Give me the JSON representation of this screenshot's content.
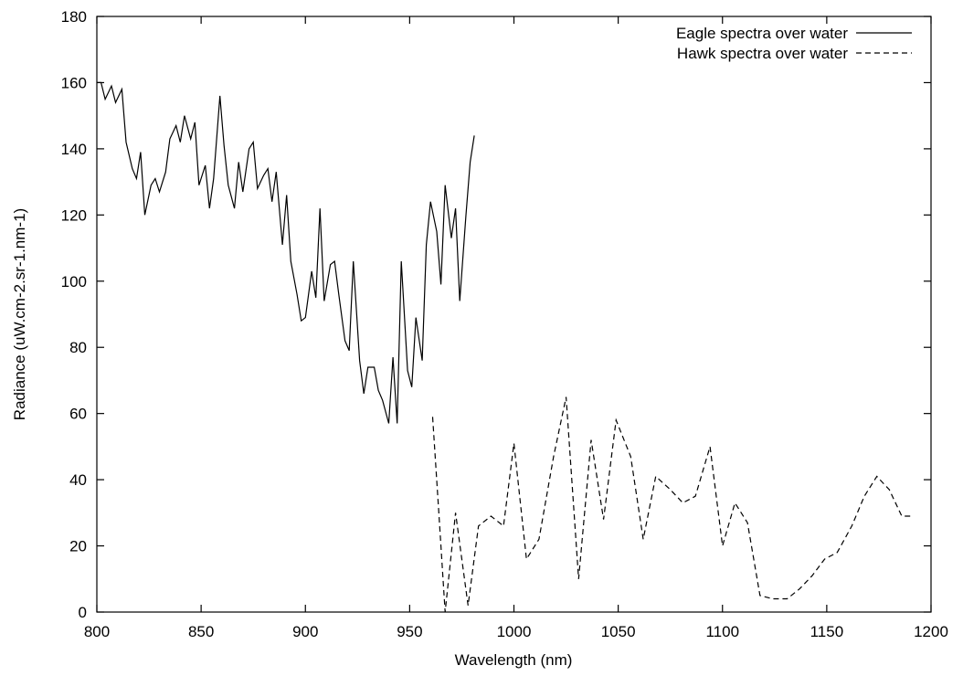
{
  "chart_data": {
    "type": "line",
    "title": "",
    "xlabel": "Wavelength (nm)",
    "ylabel": "Radiance (uW.cm-2.sr-1.nm-1)",
    "xlim": [
      800,
      1200
    ],
    "ylim": [
      0,
      180
    ],
    "x_ticks": [
      800,
      850,
      900,
      950,
      1000,
      1050,
      1100,
      1150,
      1200
    ],
    "y_ticks": [
      0,
      20,
      40,
      60,
      80,
      100,
      120,
      140,
      160,
      180
    ],
    "grid": false,
    "legend_position": "top-right",
    "series": [
      {
        "name": "Eagle spectra over water",
        "style": "solid",
        "color": "#000000",
        "points": [
          [
            800,
            160
          ],
          [
            802,
            160
          ],
          [
            804,
            155
          ],
          [
            807,
            159
          ],
          [
            809,
            154
          ],
          [
            812,
            158
          ],
          [
            814,
            142
          ],
          [
            817,
            134
          ],
          [
            819,
            131
          ],
          [
            821,
            139
          ],
          [
            823,
            120
          ],
          [
            826,
            129
          ],
          [
            828,
            131
          ],
          [
            830,
            127
          ],
          [
            833,
            133
          ],
          [
            835,
            143
          ],
          [
            838,
            147
          ],
          [
            840,
            142
          ],
          [
            842,
            150
          ],
          [
            845,
            143
          ],
          [
            847,
            148
          ],
          [
            849,
            129
          ],
          [
            852,
            135
          ],
          [
            854,
            122
          ],
          [
            856,
            131
          ],
          [
            859,
            156
          ],
          [
            861,
            141
          ],
          [
            863,
            129
          ],
          [
            866,
            122
          ],
          [
            868,
            136
          ],
          [
            870,
            127
          ],
          [
            873,
            140
          ],
          [
            875,
            142
          ],
          [
            877,
            128
          ],
          [
            880,
            132
          ],
          [
            882,
            134
          ],
          [
            884,
            124
          ],
          [
            886,
            133
          ],
          [
            889,
            111
          ],
          [
            891,
            126
          ],
          [
            893,
            106
          ],
          [
            896,
            96
          ],
          [
            898,
            88
          ],
          [
            900,
            89
          ],
          [
            903,
            103
          ],
          [
            905,
            95
          ],
          [
            907,
            122
          ],
          [
            909,
            94
          ],
          [
            912,
            105
          ],
          [
            914,
            106
          ],
          [
            916,
            96
          ],
          [
            919,
            82
          ],
          [
            921,
            79
          ],
          [
            923,
            106
          ],
          [
            926,
            76
          ],
          [
            928,
            66
          ],
          [
            930,
            74
          ],
          [
            933,
            74
          ],
          [
            935,
            67
          ],
          [
            937,
            64
          ],
          [
            940,
            57
          ],
          [
            942,
            77
          ],
          [
            944,
            57
          ],
          [
            946,
            106
          ],
          [
            949,
            73
          ],
          [
            951,
            68
          ],
          [
            953,
            89
          ],
          [
            956,
            76
          ],
          [
            958,
            111
          ],
          [
            960,
            124
          ],
          [
            963,
            115
          ],
          [
            965,
            99
          ],
          [
            967,
            129
          ],
          [
            970,
            113
          ],
          [
            972,
            122
          ],
          [
            974,
            94
          ],
          [
            977,
            120
          ],
          [
            979,
            136
          ],
          [
            981,
            144
          ]
        ]
      },
      {
        "name": "Hawk spectra over water",
        "style": "dashed",
        "color": "#000000",
        "points": [
          [
            961,
            59
          ],
          [
            964,
            30
          ],
          [
            967,
            0
          ],
          [
            972,
            30
          ],
          [
            978,
            2
          ],
          [
            983,
            26
          ],
          [
            989,
            29
          ],
          [
            995,
            26
          ],
          [
            1000,
            51
          ],
          [
            1006,
            16
          ],
          [
            1012,
            22
          ],
          [
            1019,
            47
          ],
          [
            1025,
            65
          ],
          [
            1031,
            10
          ],
          [
            1037,
            52
          ],
          [
            1043,
            28
          ],
          [
            1049,
            58
          ],
          [
            1056,
            47
          ],
          [
            1062,
            22
          ],
          [
            1068,
            41
          ],
          [
            1075,
            37
          ],
          [
            1081,
            33
          ],
          [
            1087,
            35
          ],
          [
            1094,
            50
          ],
          [
            1100,
            20
          ],
          [
            1106,
            33
          ],
          [
            1112,
            27
          ],
          [
            1118,
            5
          ],
          [
            1124,
            4
          ],
          [
            1131,
            4
          ],
          [
            1137,
            7
          ],
          [
            1143,
            11
          ],
          [
            1149,
            16
          ],
          [
            1155,
            18
          ],
          [
            1162,
            26
          ],
          [
            1168,
            35
          ],
          [
            1174,
            41
          ],
          [
            1180,
            37
          ],
          [
            1186,
            29
          ],
          [
            1190,
            29
          ]
        ]
      }
    ]
  }
}
